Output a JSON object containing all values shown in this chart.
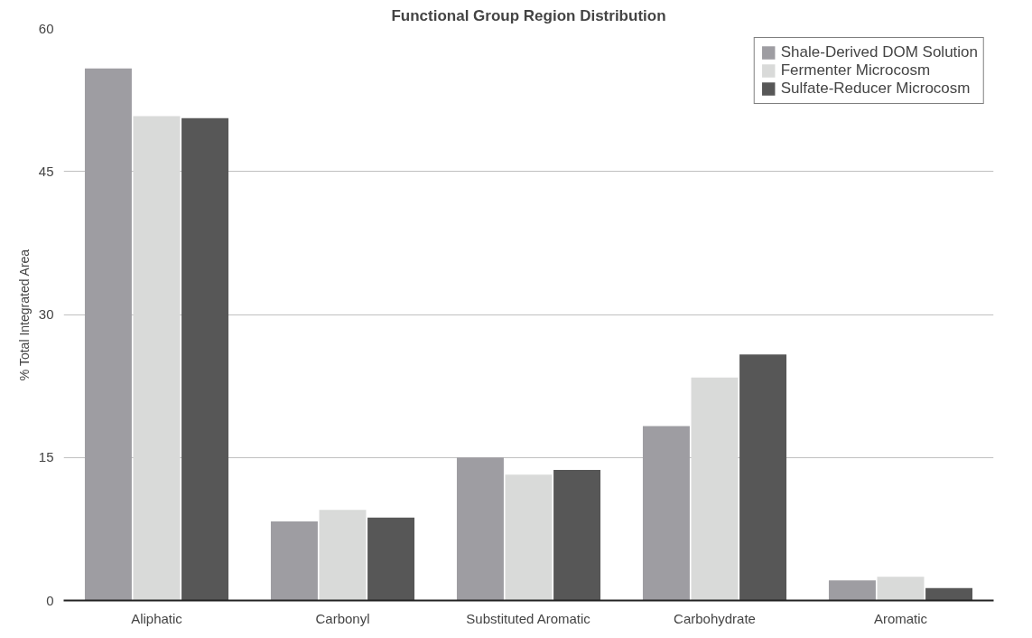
{
  "chart_data": {
    "type": "bar",
    "title": "Functional Group Region Distribution",
    "ylabel": "% Total Integrated Area",
    "categories": [
      "Aliphatic",
      "Carbonyl",
      "Substituted Aromatic",
      "Carbohydrate",
      "Aromatic"
    ],
    "series": [
      {
        "name": "Shale-Derived DOM Solution",
        "color": "#9e9da2",
        "values": [
          55.8,
          8.3,
          15.0,
          18.3,
          2.1
        ]
      },
      {
        "name": "Fermenter Microcosm",
        "color": "#d9dad9",
        "values": [
          50.8,
          9.5,
          13.2,
          23.4,
          2.5
        ]
      },
      {
        "name": "Sulfate-Reducer Microcosm",
        "color": "#575757",
        "values": [
          50.6,
          8.7,
          13.7,
          25.8,
          1.3
        ]
      }
    ],
    "ylim": [
      0,
      60
    ],
    "yticks": [
      0,
      15,
      30,
      45,
      60
    ],
    "grid": "y",
    "legend": "top right"
  }
}
